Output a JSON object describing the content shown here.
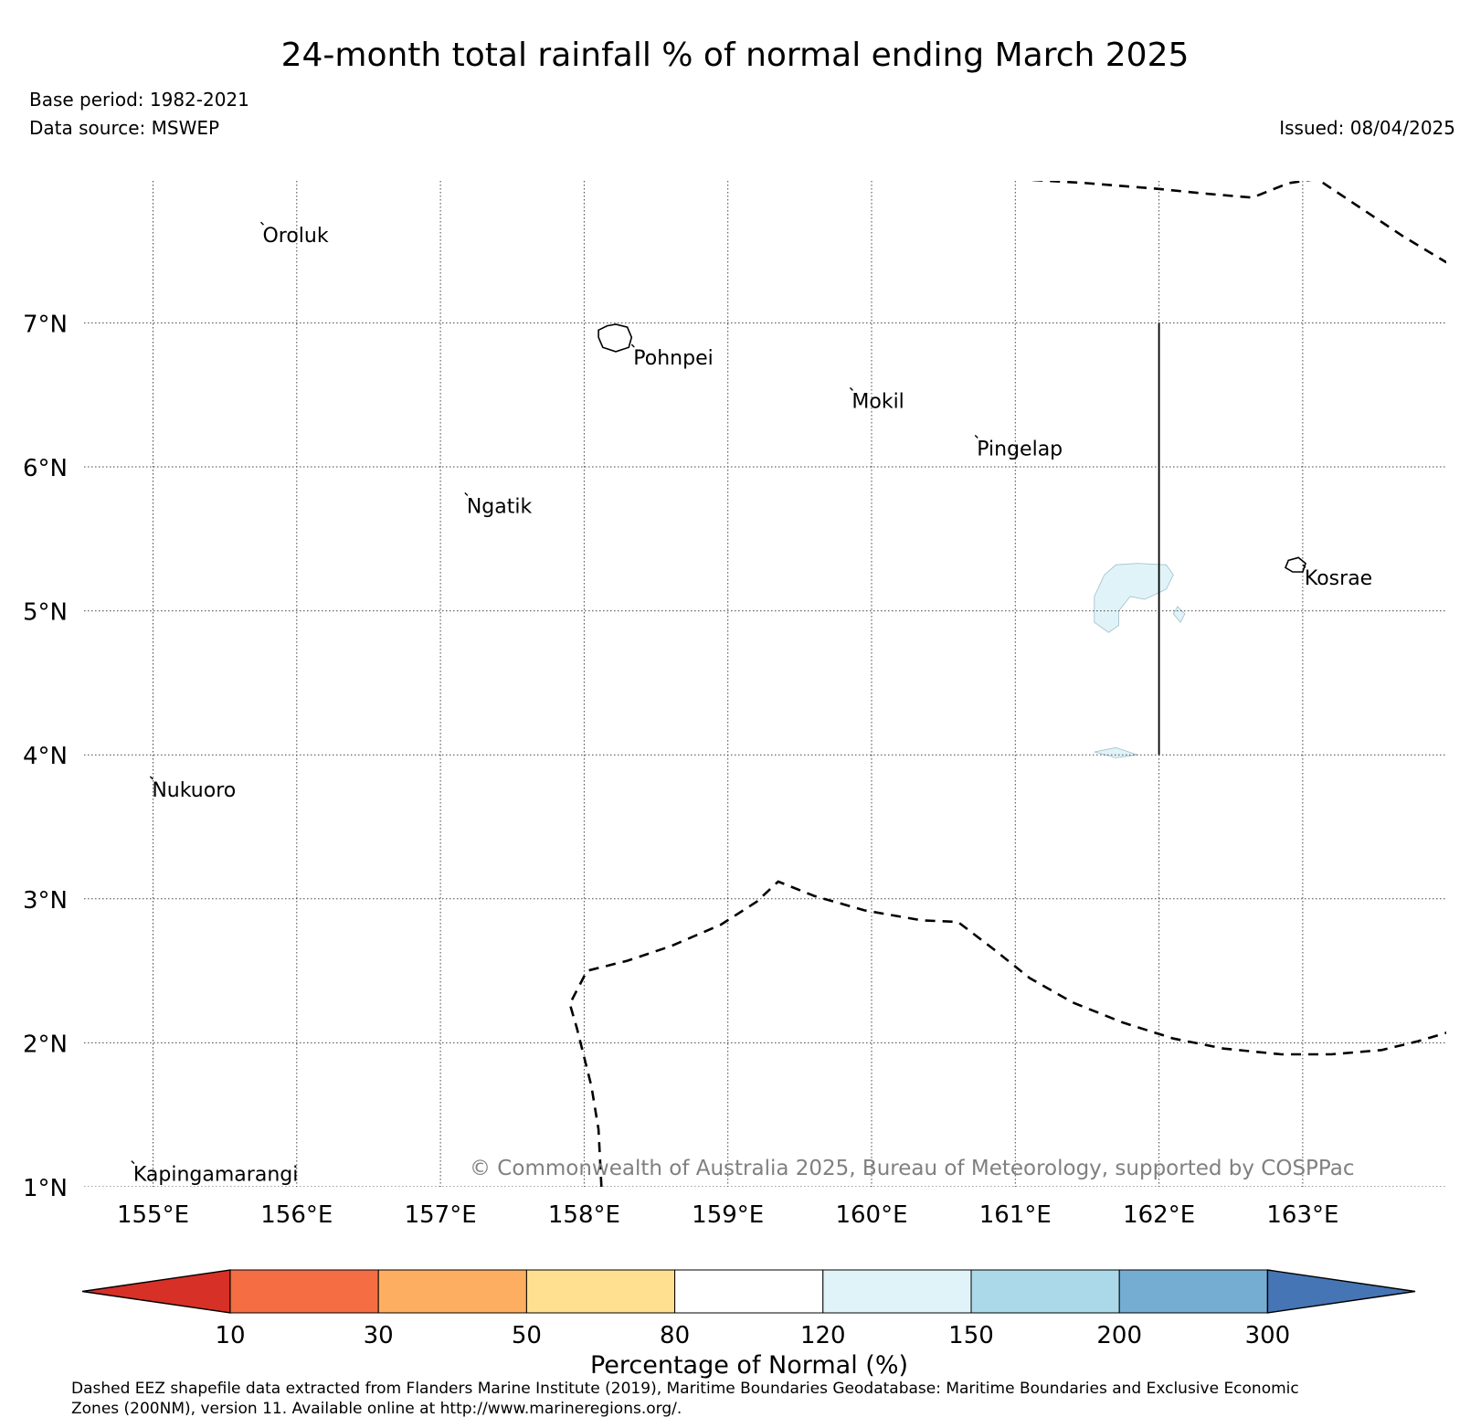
{
  "title": "24-month total rainfall % of normal ending March 2025",
  "base_period": "Base period: 1982-2021",
  "data_source": "Data source: MSWEP",
  "issued": "Issued: 08/04/2025",
  "copyright": "© Commonwealth of Australia 2025, Bureau of Meteorology, supported by COSPPac",
  "footer_line1": "Dashed EEZ shapefile data extracted from Flanders Marine Institute (2019), Maritime Boundaries Geodatabase: Maritime Boundaries and Exclusive Economic",
  "footer_line2": "Zones (200NM), version 11. Available online at http://www.marineregions.org/.",
  "map": {
    "lon_range": [
      154.5,
      164.0
    ],
    "lat_range": [
      1.0,
      8.0
    ],
    "lon_ticks": [
      {
        "value": 155,
        "label": "155°E"
      },
      {
        "value": 156,
        "label": "156°E"
      },
      {
        "value": 157,
        "label": "157°E"
      },
      {
        "value": 158,
        "label": "158°E"
      },
      {
        "value": 159,
        "label": "159°E"
      },
      {
        "value": 160,
        "label": "160°E"
      },
      {
        "value": 161,
        "label": "161°E"
      },
      {
        "value": 162,
        "label": "162°E"
      },
      {
        "value": 163,
        "label": "163°E"
      }
    ],
    "lat_ticks": [
      {
        "value": 1,
        "label": "1°N"
      },
      {
        "value": 2,
        "label": "2°N"
      },
      {
        "value": 3,
        "label": "3°N"
      },
      {
        "value": 4,
        "label": "4°N"
      },
      {
        "value": 5,
        "label": "5°N"
      },
      {
        "value": 6,
        "label": "6°N"
      },
      {
        "value": 7,
        "label": "7°N"
      }
    ],
    "grid": true,
    "places": [
      {
        "name": "Oroluk",
        "lon": 155.75,
        "lat": 7.7
      },
      {
        "name": "Pohnpei",
        "lon": 158.33,
        "lat": 6.85
      },
      {
        "name": "Mokil",
        "lon": 159.85,
        "lat": 6.55
      },
      {
        "name": "Pingelap",
        "lon": 160.72,
        "lat": 6.22
      },
      {
        "name": "Ngatik",
        "lon": 157.17,
        "lat": 5.82
      },
      {
        "name": "Kosrae",
        "lon": 163.0,
        "lat": 5.32
      },
      {
        "name": "Nukuoro",
        "lon": 154.98,
        "lat": 3.85
      },
      {
        "name": "Kapingamarangi",
        "lon": 154.85,
        "lat": 1.18
      }
    ],
    "rainfall_areas": [
      {
        "category": "120-150",
        "polygon": [
          [
            161.7,
            5.32
          ],
          [
            161.85,
            5.33
          ],
          [
            162.05,
            5.32
          ],
          [
            162.1,
            5.25
          ],
          [
            162.05,
            5.15
          ],
          [
            161.9,
            5.08
          ],
          [
            161.8,
            5.1
          ],
          [
            161.72,
            5.0
          ],
          [
            161.72,
            4.9
          ],
          [
            161.65,
            4.85
          ],
          [
            161.55,
            4.92
          ],
          [
            161.55,
            5.1
          ],
          [
            161.62,
            5.25
          ]
        ]
      },
      {
        "category": "120-150",
        "polygon": [
          [
            162.13,
            5.03
          ],
          [
            162.18,
            4.98
          ],
          [
            162.15,
            4.92
          ],
          [
            162.1,
            4.98
          ]
        ]
      },
      {
        "category": "120-150",
        "polygon": [
          [
            161.55,
            4.02
          ],
          [
            161.7,
            4.05
          ],
          [
            161.85,
            4.0
          ],
          [
            161.7,
            3.98
          ]
        ]
      }
    ],
    "eez_boundaries": [
      [
        [
          161.0,
          8.0
        ],
        [
          161.5,
          7.97
        ],
        [
          162.0,
          7.93
        ],
        [
          162.3,
          7.9
        ],
        [
          162.65,
          7.87
        ],
        [
          162.9,
          7.97
        ],
        [
          163.1,
          8.0
        ],
        [
          163.4,
          7.8
        ],
        [
          163.7,
          7.6
        ],
        [
          164.0,
          7.42
        ]
      ],
      [
        [
          158.12,
          1.0
        ],
        [
          158.1,
          1.4
        ],
        [
          158.05,
          1.7
        ],
        [
          157.95,
          2.1
        ],
        [
          157.9,
          2.27
        ],
        [
          158.02,
          2.5
        ],
        [
          158.3,
          2.57
        ],
        [
          158.6,
          2.67
        ],
        [
          158.95,
          2.82
        ],
        [
          159.2,
          2.98
        ],
        [
          159.35,
          3.12
        ],
        [
          159.6,
          3.02
        ],
        [
          159.95,
          2.92
        ],
        [
          160.35,
          2.85
        ],
        [
          160.6,
          2.84
        ],
        [
          160.85,
          2.65
        ],
        [
          161.1,
          2.45
        ],
        [
          161.4,
          2.28
        ],
        [
          161.75,
          2.14
        ],
        [
          162.1,
          2.03
        ],
        [
          162.45,
          1.96
        ],
        [
          162.85,
          1.92
        ],
        [
          163.2,
          1.92
        ],
        [
          163.55,
          1.95
        ],
        [
          163.8,
          2.01
        ],
        [
          164.0,
          2.07
        ]
      ]
    ],
    "solid_boundaries": [
      [
        [
          162.0,
          7.0
        ],
        [
          162.0,
          4.0
        ]
      ]
    ]
  },
  "colorbar": {
    "label": "Percentage of Normal (%)",
    "ticks": [
      "10",
      "30",
      "50",
      "80",
      "120",
      "150",
      "200",
      "300"
    ],
    "under_color": "#d73027",
    "over_color": "#4575b4",
    "colors": [
      "#f46d43",
      "#fdae61",
      "#fee090",
      "#ffffff",
      "#e0f3f8",
      "#abd9e9",
      "#74add1"
    ]
  }
}
